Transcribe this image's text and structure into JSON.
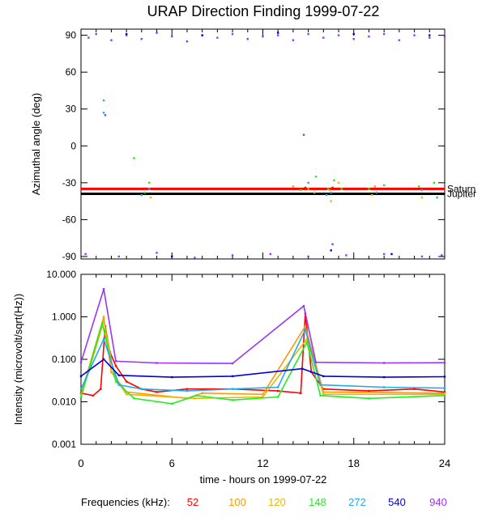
{
  "title": "URAP Direction Finding  1999-07-22",
  "xlabel": "time - hours on 1999-07-22",
  "legend": {
    "label": "Frequencies (kHz):",
    "items": [
      {
        "name": "52",
        "color": "#ff0000"
      },
      {
        "name": "100",
        "color": "#ff9900"
      },
      {
        "name": "120",
        "color": "#e6b800"
      },
      {
        "name": "148",
        "color": "#22ee22"
      },
      {
        "name": "272",
        "color": "#22aaee"
      },
      {
        "name": "540",
        "color": "#0000dd"
      },
      {
        "name": "940",
        "color": "#9933ff"
      }
    ]
  },
  "chart_data": [
    {
      "type": "scatter",
      "ylabel": "Azimuthal angle (deg)",
      "xlim": [
        0,
        24
      ],
      "ylim": [
        -92,
        95
      ],
      "x_ticks": [
        "0",
        "6",
        "12",
        "18",
        "24"
      ],
      "y_ticks": [
        "90",
        "60",
        "30",
        "0",
        "-30",
        "-60",
        "-90"
      ],
      "reference_lines": [
        {
          "name": "Saturn",
          "y": -35,
          "color": "#ff0000"
        },
        {
          "name": "Jupiter",
          "y": -39,
          "color": "#000000"
        }
      ],
      "series": [
        {
          "name": "940",
          "points": [
            [
              0.5,
              88
            ],
            [
              1,
              91
            ],
            [
              2,
              86
            ],
            [
              3,
              90
            ],
            [
              4,
              87
            ],
            [
              5,
              92
            ],
            [
              6,
              89
            ],
            [
              7,
              85
            ],
            [
              8,
              90
            ],
            [
              9,
              88
            ],
            [
              10,
              91
            ],
            [
              11,
              87
            ],
            [
              12,
              89
            ],
            [
              13,
              90
            ],
            [
              14,
              86
            ],
            [
              15,
              91
            ],
            [
              16,
              88
            ],
            [
              17,
              90
            ],
            [
              18,
              87
            ],
            [
              19,
              89
            ],
            [
              20,
              91
            ],
            [
              21,
              86
            ],
            [
              22,
              90
            ],
            [
              23,
              88
            ],
            [
              24,
              89
            ],
            [
              0.3,
              -88
            ],
            [
              2.5,
              -90
            ],
            [
              5,
              -87
            ],
            [
              7.5,
              -91
            ],
            [
              10,
              -89
            ],
            [
              12.5,
              -88
            ],
            [
              15,
              -90
            ],
            [
              16.6,
              -80
            ],
            [
              17.5,
              -89
            ],
            [
              20,
              -88
            ],
            [
              22.5,
              -90
            ],
            [
              23.8,
              -89
            ],
            [
              1.6,
              25
            ],
            [
              14.7,
              9
            ]
          ]
        },
        {
          "name": "540",
          "points": [
            [
              3,
              91
            ],
            [
              8,
              90
            ],
            [
              13,
              92
            ],
            [
              18,
              91
            ],
            [
              23,
              90
            ],
            [
              6,
              -90
            ],
            [
              16.5,
              -85
            ],
            [
              20.5,
              -88
            ]
          ]
        },
        {
          "name": "272",
          "points": [
            [
              1.5,
              27
            ],
            [
              1.5,
              37
            ],
            [
              4,
              -40
            ],
            [
              4.5,
              -35
            ],
            [
              15,
              -30
            ],
            [
              16.2,
              -40
            ],
            [
              16.5,
              -38
            ],
            [
              19.5,
              -38
            ],
            [
              22.5,
              -36
            ],
            [
              23.5,
              -42
            ]
          ]
        },
        {
          "name": "148",
          "points": [
            [
              3.5,
              -10
            ],
            [
              4.2,
              -38
            ],
            [
              4.5,
              -30
            ],
            [
              14.5,
              -36
            ],
            [
              15.5,
              -25
            ],
            [
              16.3,
              -35
            ],
            [
              16.7,
              -28
            ],
            [
              17.2,
              -35
            ],
            [
              19,
              -35
            ],
            [
              20,
              -32
            ],
            [
              22.3,
              -33
            ],
            [
              23.3,
              -30
            ]
          ]
        },
        {
          "name": "120",
          "points": [
            [
              4.6,
              -42
            ],
            [
              15.4,
              -38
            ],
            [
              16.5,
              -45
            ],
            [
              17,
              -30
            ],
            [
              19.2,
              -40
            ],
            [
              22.5,
              -42
            ]
          ]
        },
        {
          "name": "100",
          "points": [
            [
              14,
              -33
            ],
            [
              15,
              -35
            ],
            [
              16.4,
              -36
            ],
            [
              19.4,
              -33
            ]
          ]
        },
        {
          "name": "52",
          "points": [
            [
              14.8,
              -34
            ],
            [
              16.6,
              -34
            ]
          ]
        }
      ]
    },
    {
      "type": "line",
      "ylabel": "Intensity (microvolt/sqrt(Hz))",
      "yscale": "log",
      "xlim": [
        0,
        24
      ],
      "ylim": [
        0.001,
        10
      ],
      "x_ticks": [
        "0",
        "6",
        "12",
        "18",
        "24"
      ],
      "y_ticks": [
        "10.000",
        "1.000",
        "0.100",
        "0.010",
        "0.001"
      ],
      "series": [
        {
          "name": "52",
          "points": [
            [
              0,
              0.016
            ],
            [
              0.8,
              0.014
            ],
            [
              1.3,
              0.02
            ],
            [
              1.6,
              0.6
            ],
            [
              1.9,
              0.15
            ],
            [
              2.3,
              0.07
            ],
            [
              3,
              0.03
            ],
            [
              4,
              0.02
            ],
            [
              5,
              0.017
            ],
            [
              7,
              0.02
            ],
            [
              10,
              0.02
            ],
            [
              13,
              0.018
            ],
            [
              14.5,
              0.016
            ],
            [
              14.8,
              1.2
            ],
            [
              15.2,
              0.05
            ],
            [
              16,
              0.02
            ],
            [
              19,
              0.018
            ],
            [
              22,
              0.02
            ],
            [
              24,
              0.017
            ]
          ]
        },
        {
          "name": "100",
          "points": [
            [
              0,
              0.015
            ],
            [
              1.5,
              1.0
            ],
            [
              2,
              0.05
            ],
            [
              3,
              0.017
            ],
            [
              7,
              0.012
            ],
            [
              8,
              0.016
            ],
            [
              12,
              0.015
            ],
            [
              14.8,
              0.6
            ],
            [
              16,
              0.017
            ],
            [
              24,
              0.016
            ]
          ]
        },
        {
          "name": "120",
          "points": [
            [
              0,
              0.013
            ],
            [
              1.5,
              0.8
            ],
            [
              2.2,
              0.04
            ],
            [
              3,
              0.015
            ],
            [
              7.5,
              0.012
            ],
            [
              12,
              0.013
            ],
            [
              14.9,
              0.3
            ],
            [
              16,
              0.015
            ],
            [
              24,
              0.015
            ]
          ]
        },
        {
          "name": "148",
          "points": [
            [
              0,
              0.013
            ],
            [
              1.4,
              0.7
            ],
            [
              2.3,
              0.03
            ],
            [
              3.5,
              0.012
            ],
            [
              6,
              0.009
            ],
            [
              7.6,
              0.014
            ],
            [
              10,
              0.011
            ],
            [
              13,
              0.013
            ],
            [
              14.9,
              0.25
            ],
            [
              15.8,
              0.014
            ],
            [
              19,
              0.012
            ],
            [
              24,
              0.014
            ]
          ]
        },
        {
          "name": "272",
          "points": [
            [
              0,
              0.02
            ],
            [
              1.5,
              0.3
            ],
            [
              2.5,
              0.025
            ],
            [
              4,
              0.02
            ],
            [
              7,
              0.018
            ],
            [
              10,
              0.02
            ],
            [
              13,
              0.022
            ],
            [
              14.8,
              0.5
            ],
            [
              15.8,
              0.025
            ],
            [
              20,
              0.022
            ],
            [
              24,
              0.021
            ]
          ]
        },
        {
          "name": "540",
          "points": [
            [
              0,
              0.04
            ],
            [
              1.5,
              0.1
            ],
            [
              2.5,
              0.042
            ],
            [
              6,
              0.038
            ],
            [
              10,
              0.04
            ],
            [
              14.6,
              0.06
            ],
            [
              16,
              0.04
            ],
            [
              20,
              0.038
            ],
            [
              24,
              0.039
            ]
          ]
        },
        {
          "name": "940",
          "points": [
            [
              0,
              0.085
            ],
            [
              1.5,
              4.5
            ],
            [
              2.3,
              0.09
            ],
            [
              5,
              0.082
            ],
            [
              10,
              0.08
            ],
            [
              14.7,
              1.8
            ],
            [
              15.5,
              0.085
            ],
            [
              20,
              0.082
            ],
            [
              24,
              0.083
            ]
          ]
        }
      ]
    }
  ]
}
